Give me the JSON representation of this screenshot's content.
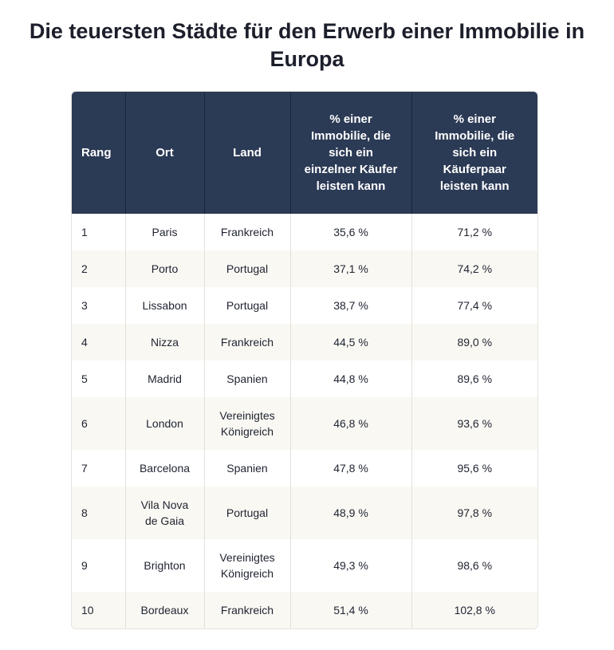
{
  "title": "Die teuersten Städte für den Erwerb einer Immobilie in Europa",
  "table": {
    "header": [
      "Rang",
      "Ort",
      "Land",
      "% einer Immobilie, die sich ein einzelner Käufer leisten kann",
      "% einer Immobilie, die sich ein Käuferpaar leisten kann"
    ],
    "rows": [
      [
        "1",
        "Paris",
        "Frankreich",
        "35,6 %",
        "71,2 %"
      ],
      [
        "2",
        "Porto",
        "Portugal",
        "37,1 %",
        "74,2 %"
      ],
      [
        "3",
        "Lissabon",
        "Portugal",
        "38,7 %",
        "77,4 %"
      ],
      [
        "4",
        "Nizza",
        "Frankreich",
        "44,5 %",
        "89,0 %"
      ],
      [
        "5",
        "Madrid",
        "Spanien",
        "44,8 %",
        "89,6 %"
      ],
      [
        "6",
        "London",
        "Vereinigtes Königreich",
        "46,8 %",
        "93,6 %"
      ],
      [
        "7",
        "Barcelona",
        "Spanien",
        "47,8 %",
        "95,6 %"
      ],
      [
        "8",
        "Vila Nova de Gaia",
        "Portugal",
        "48,9 %",
        "97,8 %"
      ],
      [
        "9",
        "Brighton",
        "Vereinigtes Königreich",
        "49,3 %",
        "98,6 %"
      ],
      [
        "10",
        "Bordeaux",
        "Frankreich",
        "51,4 %",
        "102,8 %"
      ]
    ]
  }
}
